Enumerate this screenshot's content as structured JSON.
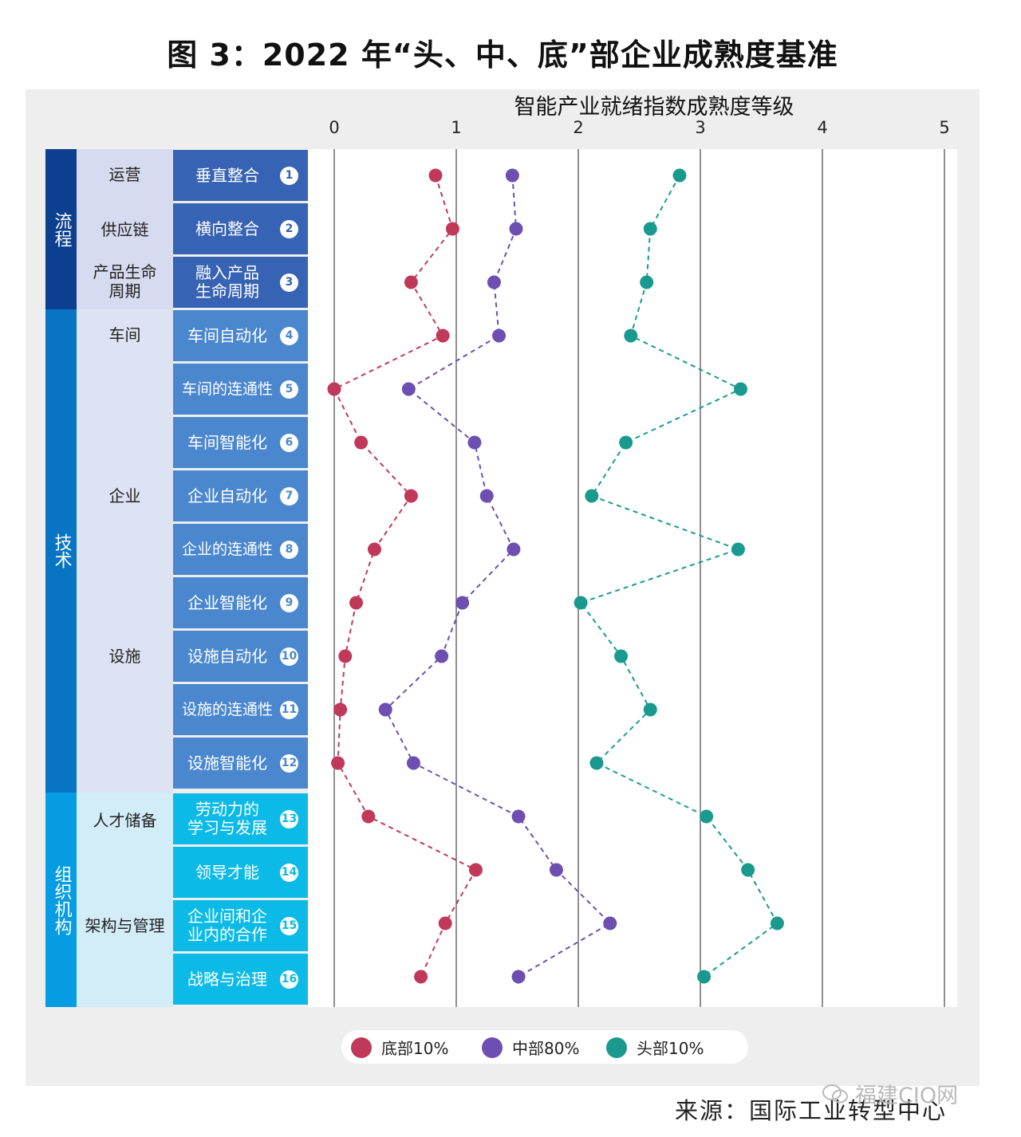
{
  "title": "图 3：2022 年“头、中、底”部企业成熟度基准",
  "axis_title": "智能产业就绪指数成熟度等级",
  "source": "来源：国际工业转型中心",
  "watermark": "福建CIO网",
  "colors": {
    "bottom": "#c0395a",
    "middle": "#6c4fb0",
    "top": "#1a9a8f",
    "cat_process": "#0c3f8f",
    "cat_tech": "#0874c4",
    "cat_org": "#069ce4",
    "sub_light": "#dcdff1",
    "row_process": "#3763b4",
    "row_tech": "#4a87cf",
    "row_org": "#0cbae8"
  },
  "categories": [
    {
      "label": "流程"
    },
    {
      "label": "技术"
    },
    {
      "label": "组织机构"
    }
  ],
  "subcategories": [
    {
      "label": "运营"
    },
    {
      "label": "供应链"
    },
    {
      "label": "产品生命\n周期"
    },
    {
      "label": "车间"
    },
    {
      "label": "企业"
    },
    {
      "label": "设施"
    },
    {
      "label": "人才储备"
    },
    {
      "label": "架构与管理"
    }
  ],
  "dimensions": [
    {
      "num": "1",
      "label": "垂直整合"
    },
    {
      "num": "2",
      "label": "横向整合"
    },
    {
      "num": "3",
      "label": "融入产品\n生命周期"
    },
    {
      "num": "4",
      "label": "车间自动化"
    },
    {
      "num": "5",
      "label": "车间的连通性"
    },
    {
      "num": "6",
      "label": "车间智能化"
    },
    {
      "num": "7",
      "label": "企业自动化"
    },
    {
      "num": "8",
      "label": "企业的连通性"
    },
    {
      "num": "9",
      "label": "企业智能化"
    },
    {
      "num": "10",
      "label": "设施自动化"
    },
    {
      "num": "11",
      "label": "设施的连通性"
    },
    {
      "num": "12",
      "label": "设施智能化"
    },
    {
      "num": "13",
      "label": "劳动力的\n学习与发展"
    },
    {
      "num": "14",
      "label": "领导才能"
    },
    {
      "num": "15",
      "label": "企业间和企\n业内的合作"
    },
    {
      "num": "16",
      "label": "战略与治理"
    }
  ],
  "legend": [
    {
      "label": "底部10%",
      "color_key": "bottom"
    },
    {
      "label": "中部80%",
      "color_key": "middle"
    },
    {
      "label": "头部10%",
      "color_key": "top"
    }
  ],
  "chart_data": {
    "type": "scatter",
    "title": "图 3：2022 年“头、中、底”部企业成熟度基准",
    "xlabel": "智能产业就绪指数成熟度等级",
    "ylabel": "",
    "xlim": [
      0,
      5
    ],
    "xticks": [
      "0",
      "1",
      "2",
      "3",
      "4",
      "5"
    ],
    "grid": true,
    "legend_position": "bottom-center",
    "categories": [
      "垂直整合",
      "横向整合",
      "融入产品生命周期",
      "车间自动化",
      "车间的连通性",
      "车间智能化",
      "企业自动化",
      "企业的连通性",
      "企业智能化",
      "设施自动化",
      "设施的连通性",
      "设施智能化",
      "劳动力的学习与发展",
      "领导才能",
      "企业间和企业内的合作",
      "战略与治理"
    ],
    "series": [
      {
        "name": "底部10%",
        "values": [
          0.83,
          0.97,
          0.63,
          0.89,
          0.0,
          0.22,
          0.63,
          0.33,
          0.18,
          0.09,
          0.05,
          0.03,
          0.28,
          1.16,
          0.91,
          0.71
        ]
      },
      {
        "name": "中部80%",
        "values": [
          1.46,
          1.49,
          1.31,
          1.35,
          0.61,
          1.15,
          1.25,
          1.47,
          1.05,
          0.88,
          0.42,
          0.65,
          1.51,
          1.82,
          2.26,
          1.51
        ]
      },
      {
        "name": "头部10%",
        "values": [
          2.83,
          2.59,
          2.56,
          2.43,
          3.33,
          2.39,
          2.11,
          3.31,
          2.02,
          2.35,
          2.59,
          2.15,
          3.05,
          3.39,
          3.63,
          3.03
        ]
      }
    ]
  }
}
